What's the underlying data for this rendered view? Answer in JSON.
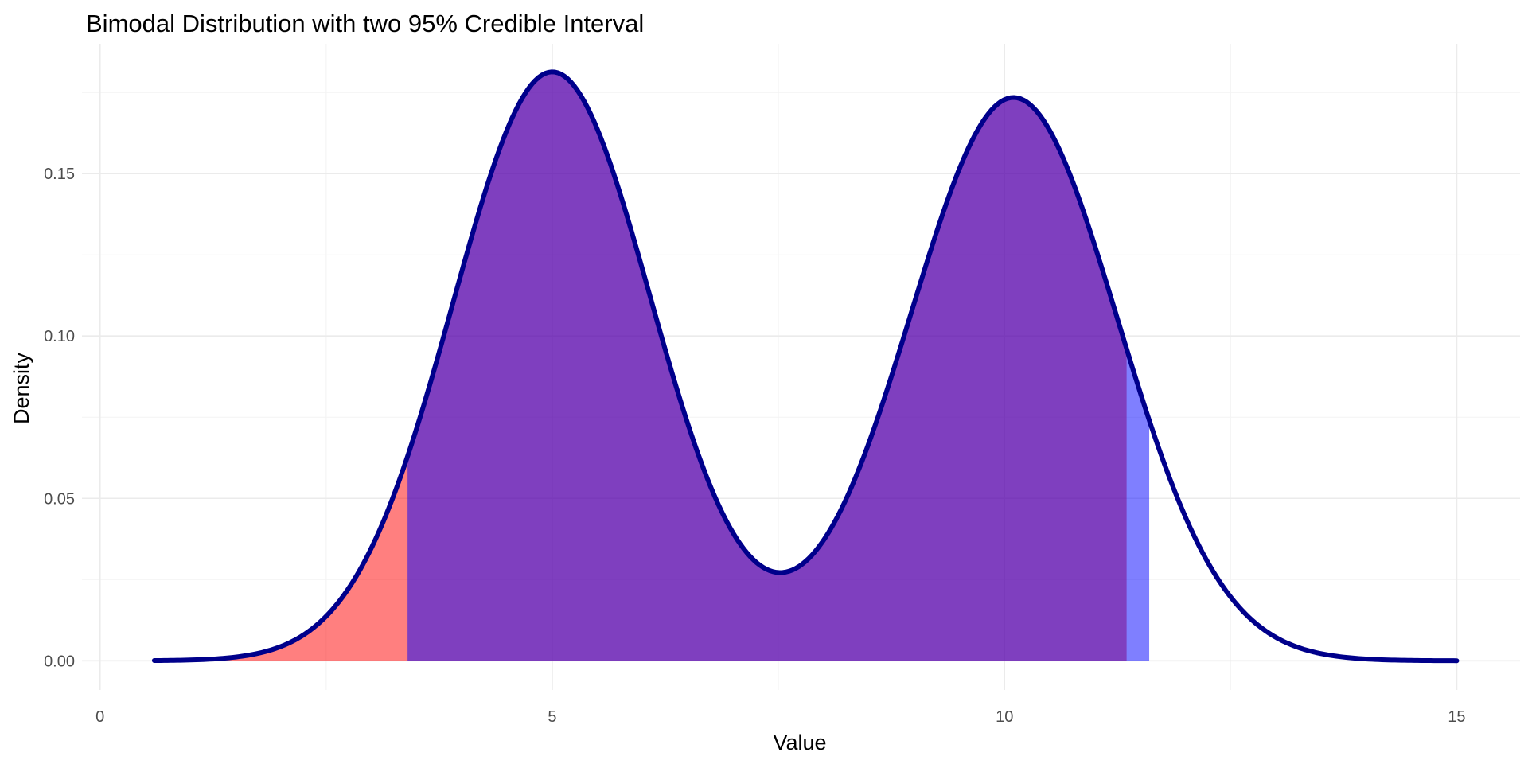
{
  "chart_data": {
    "type": "area",
    "title": "Bimodal Distribution with two 95% Credible Interval",
    "xlabel": "Value",
    "ylabel": "Density",
    "xlim": [
      -0.2,
      15.7
    ],
    "ylim": [
      -0.009,
      0.19
    ],
    "x_ticks": [
      0,
      5,
      10,
      15
    ],
    "x_tick_labels": [
      "0",
      "5",
      "10",
      "15"
    ],
    "y_ticks": [
      0.0,
      0.05,
      0.1,
      0.15
    ],
    "y_tick_labels": [
      "0.00",
      "0.05",
      "0.10",
      "0.15"
    ],
    "x_minor_ticks": [
      2.5,
      7.5,
      12.5
    ],
    "y_minor_ticks": [
      0.025,
      0.075,
      0.125,
      0.175
    ],
    "grid": true,
    "legend": "none",
    "density_curve": {
      "color": "#00008b",
      "x_range": [
        0.6,
        15.0
      ],
      "components": [
        {
          "weight": 0.5,
          "mean": 5.0,
          "sd": 1.1
        },
        {
          "weight": 0.5,
          "mean": 10.1,
          "sd": 1.15
        }
      ]
    },
    "intervals": [
      {
        "from": 0.6,
        "to": 11.35,
        "color": "#ff0000",
        "opacity": 0.5
      },
      {
        "from": 3.4,
        "to": 11.6,
        "color": "#0000ff",
        "opacity": 0.5
      }
    ]
  }
}
